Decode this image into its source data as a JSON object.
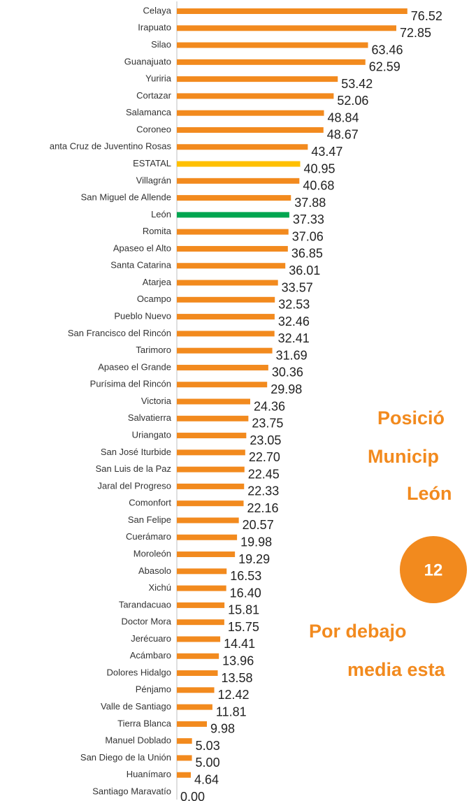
{
  "chart_data": {
    "type": "barh",
    "categories": [
      "Celaya",
      "Irapuato",
      "Silao",
      "Guanajuato",
      "Yuriria",
      "Cortazar",
      "Salamanca",
      "Coroneo",
      "anta Cruz de Juventino Rosas",
      "ESTATAL",
      "Villagrán",
      "San Miguel de Allende",
      "León",
      "Romita",
      "Apaseo el Alto",
      "Santa Catarina",
      "Atarjea",
      "Ocampo",
      "Pueblo Nuevo",
      "San Francisco del Rincón",
      "Tarimoro",
      "Apaseo el Grande",
      "Purísima del Rincón",
      "Victoria",
      "Salvatierra",
      "Uriangato",
      "San José Iturbide",
      "San Luis de la Paz",
      "Jaral del Progreso",
      "Comonfort",
      "San Felipe",
      "Cuerámaro",
      "Moroleón",
      "Abasolo",
      "Xichú",
      "Tarandacuao",
      "Doctor Mora",
      "Jerécuaro",
      "Acámbaro",
      "Dolores Hidalgo",
      "Pénjamo",
      "Valle de Santiago",
      "Tierra Blanca",
      "Manuel Doblado",
      "San Diego de la Unión",
      "Huanímaro",
      "Santiago Maravatío"
    ],
    "values": [
      76.52,
      72.85,
      63.46,
      62.59,
      53.42,
      52.06,
      48.84,
      48.67,
      43.47,
      40.95,
      40.68,
      37.88,
      37.33,
      37.06,
      36.85,
      36.01,
      33.57,
      32.53,
      32.46,
      32.41,
      31.69,
      30.36,
      29.98,
      24.36,
      23.75,
      23.05,
      22.7,
      22.45,
      22.33,
      22.16,
      20.57,
      19.98,
      19.29,
      16.53,
      16.4,
      15.81,
      15.75,
      14.41,
      13.96,
      13.58,
      12.42,
      11.81,
      9.98,
      5.03,
      5.0,
      4.64,
      0.0
    ],
    "value_labels": [
      "76.52",
      "72.85",
      "63.46",
      "62.59",
      "53.42",
      "52.06",
      "48.84",
      "48.67",
      "43.47",
      "40.95",
      "40.68",
      "37.88",
      "37.33",
      "37.06",
      "36.85",
      "36.01",
      "33.57",
      "32.53",
      "32.46",
      "32.41",
      "31.69",
      "30.36",
      "29.98",
      "24.36",
      "23.75",
      "23.05",
      "22.70",
      "22.45",
      "22.33",
      "22.16",
      "20.57",
      "19.98",
      "19.29",
      "16.53",
      "16.40",
      "15.81",
      "15.75",
      "14.41",
      "13.96",
      "13.58",
      "12.42",
      "11.81",
      "9.98",
      "5.03",
      "5.00",
      "4.64",
      "0.00"
    ],
    "colors": [
      "#f28a1e",
      "#f28a1e",
      "#f28a1e",
      "#f28a1e",
      "#f28a1e",
      "#f28a1e",
      "#f28a1e",
      "#f28a1e",
      "#f28a1e",
      "#ffc000",
      "#f28a1e",
      "#f28a1e",
      "#00a650",
      "#f28a1e",
      "#f28a1e",
      "#f28a1e",
      "#f28a1e",
      "#f28a1e",
      "#f28a1e",
      "#f28a1e",
      "#f28a1e",
      "#f28a1e",
      "#f28a1e",
      "#f28a1e",
      "#f28a1e",
      "#f28a1e",
      "#f28a1e",
      "#f28a1e",
      "#f28a1e",
      "#f28a1e",
      "#f28a1e",
      "#f28a1e",
      "#f28a1e",
      "#f28a1e",
      "#f28a1e",
      "#f28a1e",
      "#f28a1e",
      "#f28a1e",
      "#f28a1e",
      "#f28a1e",
      "#f28a1e",
      "#f28a1e",
      "#f28a1e",
      "#f28a1e",
      "#f28a1e",
      "#f28a1e",
      "#f28a1e"
    ],
    "xlim": [
      0,
      100
    ],
    "annotations": [
      "Posició",
      "Municip",
      "León",
      "12",
      "Por debajo",
      "media esta"
    ]
  }
}
